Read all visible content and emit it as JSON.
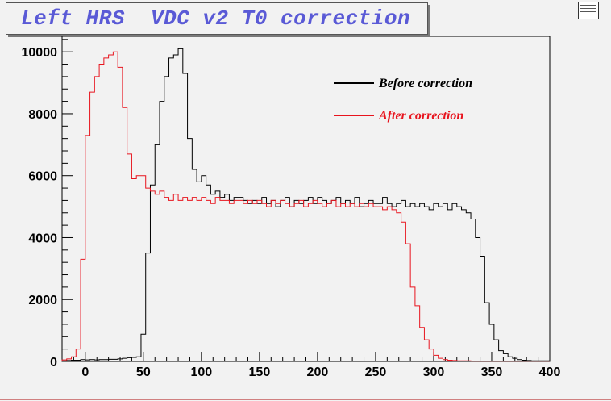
{
  "title": "Left HRS  VDC v2 T0 correction",
  "chart_data": {
    "type": "histogram",
    "xlim": [
      -20,
      400
    ],
    "ylim": [
      0,
      10500
    ],
    "bin_width": 4,
    "x_ticks": [
      0,
      50,
      100,
      150,
      200,
      250,
      300,
      350,
      400
    ],
    "y_ticks": [
      0,
      2000,
      4000,
      6000,
      8000,
      10000
    ],
    "grid": false,
    "legend_position": "top-right",
    "series": [
      {
        "name": "Before correction",
        "color": "#000000",
        "bins": [
          [
            -20,
            20
          ],
          [
            -16,
            30
          ],
          [
            -12,
            40
          ],
          [
            -8,
            40
          ],
          [
            -4,
            60
          ],
          [
            0,
            50
          ],
          [
            4,
            60
          ],
          [
            8,
            50
          ],
          [
            12,
            60
          ],
          [
            16,
            60
          ],
          [
            20,
            70
          ],
          [
            24,
            70
          ],
          [
            28,
            80
          ],
          [
            32,
            100
          ],
          [
            36,
            120
          ],
          [
            40,
            130
          ],
          [
            44,
            150
          ],
          [
            48,
            880
          ],
          [
            52,
            3500
          ],
          [
            56,
            5700
          ],
          [
            60,
            7000
          ],
          [
            64,
            8400
          ],
          [
            68,
            9200
          ],
          [
            72,
            9800
          ],
          [
            76,
            9900
          ],
          [
            80,
            10100
          ],
          [
            84,
            9300
          ],
          [
            88,
            7200
          ],
          [
            92,
            6200
          ],
          [
            96,
            5800
          ],
          [
            100,
            6000
          ],
          [
            104,
            5700
          ],
          [
            108,
            5400
          ],
          [
            112,
            5500
          ],
          [
            116,
            5300
          ],
          [
            120,
            5400
          ],
          [
            124,
            5200
          ],
          [
            128,
            5300
          ],
          [
            132,
            5300
          ],
          [
            136,
            5200
          ],
          [
            140,
            5100
          ],
          [
            144,
            5200
          ],
          [
            148,
            5100
          ],
          [
            152,
            5300
          ],
          [
            156,
            5100
          ],
          [
            160,
            5200
          ],
          [
            164,
            5000
          ],
          [
            168,
            5200
          ],
          [
            172,
            5300
          ],
          [
            176,
            5000
          ],
          [
            180,
            5200
          ],
          [
            184,
            5100
          ],
          [
            188,
            5200
          ],
          [
            192,
            5300
          ],
          [
            196,
            5100
          ],
          [
            200,
            5300
          ],
          [
            204,
            5200
          ],
          [
            208,
            5100
          ],
          [
            212,
            5200
          ],
          [
            216,
            5300
          ],
          [
            220,
            5100
          ],
          [
            224,
            5200
          ],
          [
            228,
            5100
          ],
          [
            232,
            5300
          ],
          [
            236,
            5000
          ],
          [
            240,
            5100
          ],
          [
            244,
            5200
          ],
          [
            248,
            5100
          ],
          [
            252,
            5100
          ],
          [
            256,
            5300
          ],
          [
            260,
            5100
          ],
          [
            264,
            5000
          ],
          [
            268,
            5100
          ],
          [
            272,
            5200
          ],
          [
            276,
            5000
          ],
          [
            280,
            5100
          ],
          [
            284,
            5000
          ],
          [
            288,
            5100
          ],
          [
            292,
            5000
          ],
          [
            296,
            4900
          ],
          [
            300,
            5100
          ],
          [
            304,
            5000
          ],
          [
            308,
            5100
          ],
          [
            312,
            4900
          ],
          [
            316,
            5100
          ],
          [
            320,
            5000
          ],
          [
            324,
            4900
          ],
          [
            328,
            4800
          ],
          [
            332,
            4600
          ],
          [
            336,
            4000
          ],
          [
            340,
            3400
          ],
          [
            344,
            1900
          ],
          [
            348,
            1200
          ],
          [
            352,
            700
          ],
          [
            356,
            350
          ],
          [
            360,
            250
          ],
          [
            364,
            150
          ],
          [
            368,
            100
          ],
          [
            372,
            60
          ],
          [
            376,
            40
          ],
          [
            380,
            30
          ],
          [
            384,
            20
          ],
          [
            388,
            20
          ],
          [
            392,
            20
          ],
          [
            396,
            20
          ]
        ]
      },
      {
        "name": "After correction",
        "color": "#e8141e",
        "bins": [
          [
            -20,
            50
          ],
          [
            -16,
            80
          ],
          [
            -12,
            150
          ],
          [
            -8,
            400
          ],
          [
            -4,
            3300
          ],
          [
            0,
            7300
          ],
          [
            4,
            8700
          ],
          [
            8,
            9200
          ],
          [
            12,
            9600
          ],
          [
            16,
            9800
          ],
          [
            20,
            9900
          ],
          [
            24,
            10000
          ],
          [
            28,
            9500
          ],
          [
            32,
            8200
          ],
          [
            36,
            6700
          ],
          [
            40,
            5900
          ],
          [
            44,
            6000
          ],
          [
            48,
            6000
          ],
          [
            52,
            5600
          ],
          [
            56,
            5500
          ],
          [
            60,
            5400
          ],
          [
            64,
            5500
          ],
          [
            68,
            5300
          ],
          [
            72,
            5200
          ],
          [
            76,
            5400
          ],
          [
            80,
            5200
          ],
          [
            84,
            5300
          ],
          [
            88,
            5200
          ],
          [
            92,
            5300
          ],
          [
            96,
            5200
          ],
          [
            100,
            5300
          ],
          [
            104,
            5200
          ],
          [
            108,
            5100
          ],
          [
            112,
            5300
          ],
          [
            116,
            5200
          ],
          [
            120,
            5200
          ],
          [
            124,
            5100
          ],
          [
            128,
            5200
          ],
          [
            132,
            5200
          ],
          [
            136,
            5100
          ],
          [
            140,
            5200
          ],
          [
            144,
            5100
          ],
          [
            148,
            5200
          ],
          [
            152,
            5100
          ],
          [
            156,
            5000
          ],
          [
            160,
            5200
          ],
          [
            164,
            5100
          ],
          [
            168,
            5200
          ],
          [
            172,
            5100
          ],
          [
            176,
            5000
          ],
          [
            180,
            5100
          ],
          [
            184,
            5200
          ],
          [
            188,
            5000
          ],
          [
            192,
            5100
          ],
          [
            196,
            5200
          ],
          [
            200,
            5100
          ],
          [
            204,
            5000
          ],
          [
            208,
            5100
          ],
          [
            212,
            5200
          ],
          [
            216,
            5000
          ],
          [
            220,
            5100
          ],
          [
            224,
            5000
          ],
          [
            228,
            5100
          ],
          [
            232,
            5000
          ],
          [
            236,
            5100
          ],
          [
            240,
            5000
          ],
          [
            244,
            5100
          ],
          [
            248,
            5000
          ],
          [
            252,
            5000
          ],
          [
            256,
            4900
          ],
          [
            260,
            5000
          ],
          [
            264,
            4900
          ],
          [
            268,
            4800
          ],
          [
            272,
            4500
          ],
          [
            276,
            3800
          ],
          [
            280,
            2400
          ],
          [
            284,
            1800
          ],
          [
            288,
            1100
          ],
          [
            292,
            700
          ],
          [
            296,
            400
          ],
          [
            300,
            200
          ],
          [
            304,
            100
          ],
          [
            308,
            60
          ],
          [
            312,
            40
          ],
          [
            316,
            30
          ],
          [
            320,
            20
          ],
          [
            324,
            20
          ],
          [
            328,
            20
          ],
          [
            332,
            10
          ],
          [
            336,
            10
          ],
          [
            340,
            10
          ],
          [
            344,
            10
          ],
          [
            348,
            10
          ],
          [
            352,
            10
          ],
          [
            356,
            10
          ],
          [
            360,
            10
          ],
          [
            364,
            10
          ],
          [
            368,
            10
          ],
          [
            372,
            10
          ],
          [
            376,
            10
          ],
          [
            380,
            10
          ],
          [
            384,
            10
          ],
          [
            388,
            10
          ],
          [
            392,
            10
          ],
          [
            396,
            10
          ]
        ]
      }
    ]
  }
}
